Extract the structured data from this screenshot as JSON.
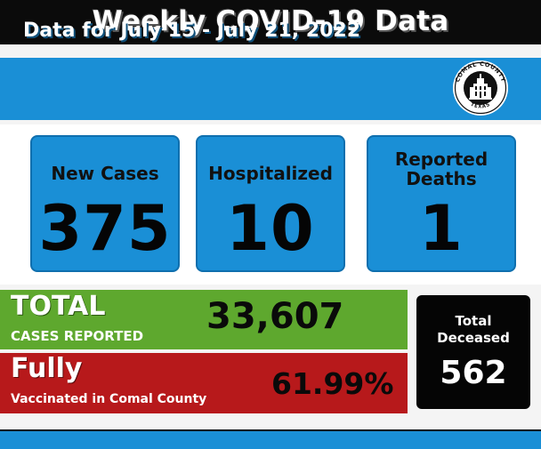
{
  "header": {
    "title": "Weekly COVID-19 Data"
  },
  "banner": {
    "date_range": "Data for July 15 - July 21, 2022",
    "seal": {
      "top_text": "COMAL COUNTY",
      "bottom_text": "TEXAS"
    }
  },
  "weekly_stats": [
    {
      "label_lines": [
        "New Cases"
      ],
      "value": "375"
    },
    {
      "label_lines": [
        "Hospitalized"
      ],
      "value": "10"
    },
    {
      "label_lines": [
        "Reported",
        "Deaths"
      ],
      "value": "1"
    }
  ],
  "totals": {
    "cases_title": "TOTAL",
    "cases_subtitle": "CASES REPORTED",
    "cases_value": "33,607",
    "vacc_title": "Fully",
    "vacc_subtitle": "Vaccinated in Comal County",
    "vacc_value": "61.99%",
    "deceased_label_lines": [
      "Total",
      "Deceased"
    ],
    "deceased_value": "562"
  },
  "colors": {
    "header_bg": "#0b0b0b",
    "banner_blue": "#1a8fd6",
    "cases_green": "#5ea82e",
    "vacc_red": "#b7191b",
    "deceased_black": "#050505"
  }
}
